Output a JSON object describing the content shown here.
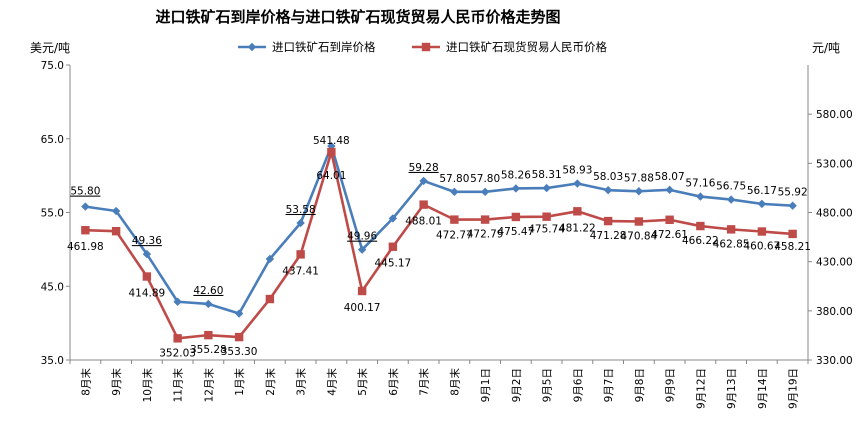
{
  "chart_data": {
    "type": "line",
    "title": "进口铁矿石到岸价格与进口铁矿石现货贸易人民币价格走势图",
    "ylabel_left": "美元/吨",
    "ylabel_right": "元/吨",
    "ylim_left": [
      35,
      75
    ],
    "ylim_right": [
      330,
      630
    ],
    "yticks_left": [
      "35.0",
      "45.0",
      "55.0",
      "65.0",
      "75.0"
    ],
    "yticks_right": [
      "330.00",
      "380.00",
      "430.00",
      "480.00",
      "530.00",
      "580.00"
    ],
    "legend_position": "top-center",
    "grid": false,
    "categories": [
      "8月末",
      "9月末",
      "10月末",
      "11月末",
      "12月末",
      "1月末",
      "2月末",
      "3月末",
      "4月末",
      "5月末",
      "6月末",
      "7月末",
      "8月末",
      "9月1日",
      "9月2日",
      "9月5日",
      "9月6日",
      "9月7日",
      "9月8日",
      "9月9日",
      "9月12日",
      "9月13日",
      "9月14日",
      "9月19日"
    ],
    "series": [
      {
        "name": "进口铁矿石到岸价格",
        "axis": "left",
        "color": "#4a7ebb",
        "marker": "diamond",
        "values": [
          55.8,
          55.2,
          49.36,
          42.9,
          42.6,
          41.3,
          48.7,
          53.58,
          64.01,
          49.96,
          54.2,
          59.28,
          57.8,
          57.8,
          58.26,
          58.31,
          58.93,
          58.03,
          57.88,
          58.07,
          57.16,
          56.75,
          56.17,
          55.92
        ],
        "labels": [
          "55.80",
          "",
          "49.36",
          "",
          "42.60",
          "",
          "",
          "53.58",
          "64.01",
          "49.96",
          "",
          "59.28",
          "57.80",
          "57.80",
          "58.26",
          "58.31",
          "58.93",
          "58.03",
          "57.88",
          "58.07",
          "57.16",
          "56.75",
          "56.17",
          "55.92"
        ]
      },
      {
        "name": "进口铁矿石现货贸易人民币价格",
        "axis": "right",
        "color": "#be4b48",
        "marker": "square",
        "values": [
          461.98,
          461.0,
          414.89,
          352.03,
          355.28,
          353.3,
          392.0,
          437.41,
          541.48,
          400.17,
          445.17,
          488.01,
          472.77,
          472.79,
          475.47,
          475.74,
          481.22,
          471.28,
          470.84,
          472.61,
          466.22,
          462.85,
          460.67,
          458.21
        ],
        "labels": [
          "461.98",
          "",
          "414.89",
          "352.03",
          "355.28",
          "353.30",
          "",
          "437.41",
          "541.48",
          "400.17",
          "445.17",
          "488.01",
          "472.77",
          "472.79",
          "475.47",
          "475.74",
          "481.22",
          "471.28",
          "470.84",
          "472.61",
          "466.22",
          "462.85",
          "460.67",
          "458.21"
        ]
      }
    ]
  }
}
